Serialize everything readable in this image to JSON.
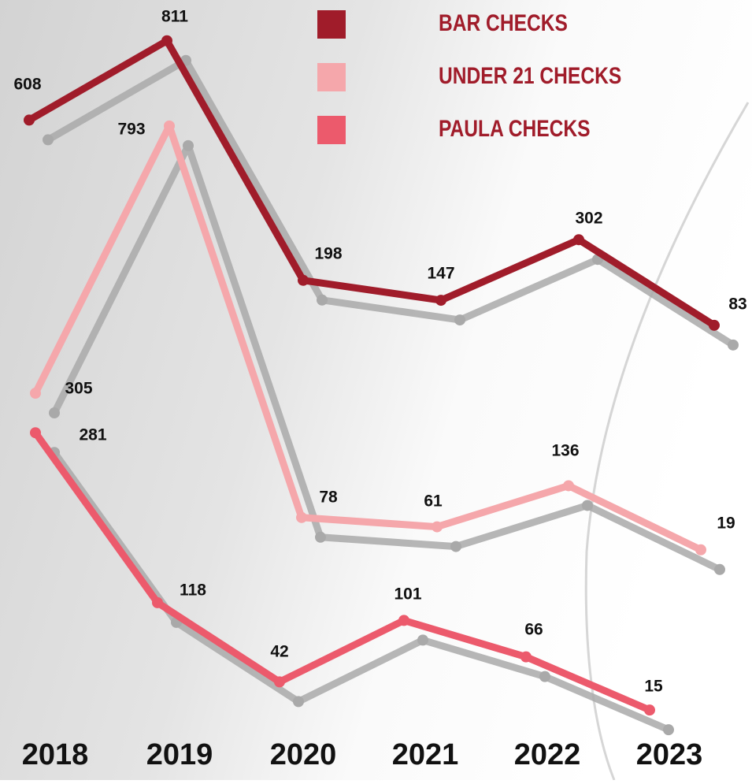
{
  "chart_data": {
    "type": "line",
    "categories": [
      "2018",
      "2019",
      "2020",
      "2021",
      "2022",
      "2023"
    ],
    "series": [
      {
        "name": "BAR CHECKS",
        "color": "#a01c2a",
        "values": [
          608,
          811,
          198,
          147,
          302,
          83
        ]
      },
      {
        "name": "UNDER 21 CHECKS",
        "color": "#f5a7ab",
        "values": [
          305,
          793,
          78,
          61,
          136,
          19
        ]
      },
      {
        "name": "PAULA CHECKS",
        "color": "#ec5a6c",
        "values": [
          281,
          118,
          42,
          101,
          66,
          15
        ]
      }
    ]
  }
}
